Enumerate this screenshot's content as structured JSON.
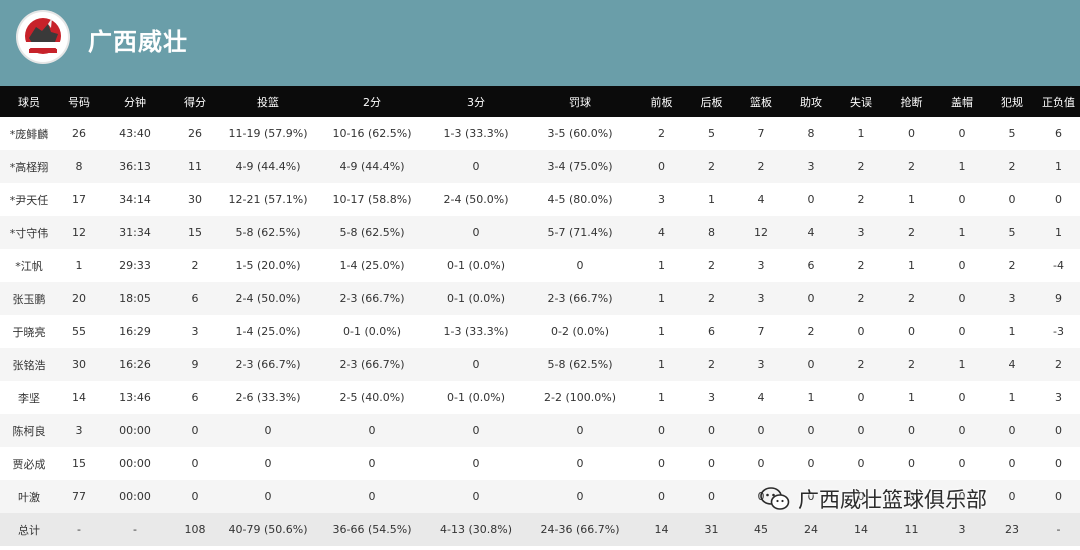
{
  "header": {
    "team_name": "广西威壮",
    "logo_alt": "GUANGXI RHINO"
  },
  "columns": [
    "球员",
    "号码",
    "分钟",
    "得分",
    "投篮",
    "2分",
    "3分",
    "罚球",
    "前板",
    "后板",
    "篮板",
    "助攻",
    "失误",
    "抢断",
    "盖帽",
    "犯规",
    "正负值"
  ],
  "rows": [
    [
      "*庞鲱麟",
      "26",
      "43:40",
      "26",
      "11-19 (57.9%)",
      "10-16 (62.5%)",
      "1-3 (33.3%)",
      "3-5 (60.0%)",
      "2",
      "5",
      "7",
      "8",
      "1",
      "0",
      "0",
      "5",
      "6"
    ],
    [
      "*高柽翔",
      "8",
      "36:13",
      "11",
      "4-9 (44.4%)",
      "4-9 (44.4%)",
      "0",
      "3-4 (75.0%)",
      "0",
      "2",
      "2",
      "3",
      "2",
      "2",
      "1",
      "2",
      "1"
    ],
    [
      "*尹天任",
      "17",
      "34:14",
      "30",
      "12-21 (57.1%)",
      "10-17 (58.8%)",
      "2-4 (50.0%)",
      "4-5 (80.0%)",
      "3",
      "1",
      "4",
      "0",
      "2",
      "1",
      "0",
      "0",
      "0"
    ],
    [
      "*寸守伟",
      "12",
      "31:34",
      "15",
      "5-8 (62.5%)",
      "5-8 (62.5%)",
      "0",
      "5-7 (71.4%)",
      "4",
      "8",
      "12",
      "4",
      "3",
      "2",
      "1",
      "5",
      "1"
    ],
    [
      "*江帆",
      "1",
      "29:33",
      "2",
      "1-5 (20.0%)",
      "1-4 (25.0%)",
      "0-1 (0.0%)",
      "0",
      "1",
      "2",
      "3",
      "6",
      "2",
      "1",
      "0",
      "2",
      "-4"
    ],
    [
      "张玉鹏",
      "20",
      "18:05",
      "6",
      "2-4 (50.0%)",
      "2-3 (66.7%)",
      "0-1 (0.0%)",
      "2-3 (66.7%)",
      "1",
      "2",
      "3",
      "0",
      "2",
      "2",
      "0",
      "3",
      "9"
    ],
    [
      "于晓亮",
      "55",
      "16:29",
      "3",
      "1-4 (25.0%)",
      "0-1 (0.0%)",
      "1-3 (33.3%)",
      "0-2 (0.0%)",
      "1",
      "6",
      "7",
      "2",
      "0",
      "0",
      "0",
      "1",
      "-3"
    ],
    [
      "张铭浩",
      "30",
      "16:26",
      "9",
      "2-3 (66.7%)",
      "2-3 (66.7%)",
      "0",
      "5-8 (62.5%)",
      "1",
      "2",
      "3",
      "0",
      "2",
      "2",
      "1",
      "4",
      "2"
    ],
    [
      "李坚",
      "14",
      "13:46",
      "6",
      "2-6 (33.3%)",
      "2-5 (40.0%)",
      "0-1 (0.0%)",
      "2-2 (100.0%)",
      "1",
      "3",
      "4",
      "1",
      "0",
      "1",
      "0",
      "1",
      "3"
    ],
    [
      "陈柯良",
      "3",
      "00:00",
      "0",
      "0",
      "0",
      "0",
      "0",
      "0",
      "0",
      "0",
      "0",
      "0",
      "0",
      "0",
      "0",
      "0"
    ],
    [
      "贾必成",
      "15",
      "00:00",
      "0",
      "0",
      "0",
      "0",
      "0",
      "0",
      "0",
      "0",
      "0",
      "0",
      "0",
      "0",
      "0",
      "0"
    ],
    [
      "叶激",
      "77",
      "00:00",
      "0",
      "0",
      "0",
      "0",
      "0",
      "0",
      "0",
      "0",
      "0",
      "0",
      "0",
      "0",
      "0",
      "0"
    ]
  ],
  "totals": [
    "总计",
    "-",
    "-",
    "108",
    "40-79 (50.6%)",
    "36-66 (54.5%)",
    "4-13 (30.8%)",
    "24-36 (66.7%)",
    "14",
    "31",
    "45",
    "24",
    "14",
    "11",
    "3",
    "23",
    "-"
  ],
  "watermark": {
    "text": "广西威壮篮球俱乐部",
    "icon": "wechat-icon"
  },
  "colors": {
    "header_bg": "#6a9ea9",
    "table_head_bg": "#0b0b0b",
    "logo_red": "#c7222a"
  }
}
